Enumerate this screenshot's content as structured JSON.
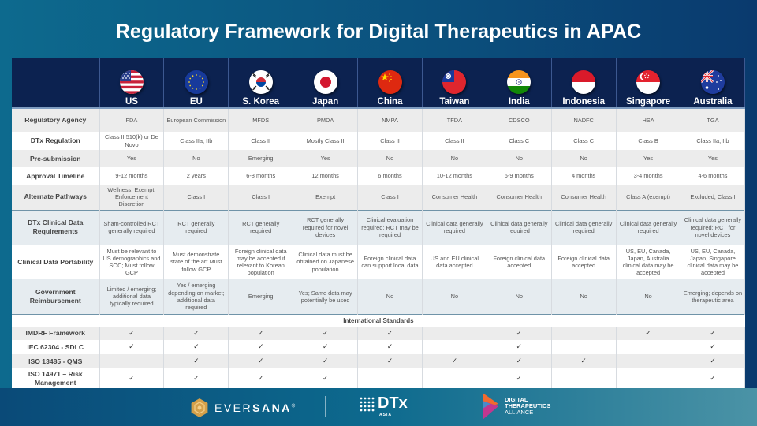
{
  "title": "Regulatory Framework for Digital Therapeutics in APAC",
  "countries": [
    {
      "name": "US",
      "flag": "us-flag"
    },
    {
      "name": "EU",
      "flag": "eu-flag"
    },
    {
      "name": "S. Korea",
      "flag": "south-korea-flag"
    },
    {
      "name": "Japan",
      "flag": "japan-flag"
    },
    {
      "name": "China",
      "flag": "china-flag"
    },
    {
      "name": "Taiwan",
      "flag": "taiwan-flag"
    },
    {
      "name": "India",
      "flag": "india-flag"
    },
    {
      "name": "Indonesia",
      "flag": "indonesia-flag"
    },
    {
      "name": "Singapore",
      "flag": "singapore-flag"
    },
    {
      "name": "Australia",
      "flag": "australia-flag"
    }
  ],
  "rows": [
    {
      "label": "Regulatory Agency",
      "values": [
        "FDA",
        "European Commission",
        "MFDS",
        "PMDA",
        "NMPA",
        "TFDA",
        "CDSCO",
        "NADFC",
        "HSA",
        "TGA"
      ]
    },
    {
      "label": "DTx Regulation",
      "values": [
        "Class II 510(k) or De Novo",
        "Class IIa, IIb",
        "Class II",
        "Mostly Class II",
        "Class II",
        "Class II",
        "Class C",
        "Class C",
        "Class B",
        "Class IIa, IIb"
      ]
    },
    {
      "label": "Pre-submission",
      "values": [
        "Yes",
        "No",
        "Emerging",
        "Yes",
        "No",
        "No",
        "No",
        "No",
        "Yes",
        "Yes"
      ]
    },
    {
      "label": "Approval Timeline",
      "values": [
        "9-12 months",
        "2 years",
        "6-8 months",
        "12 months",
        "6 months",
        "10-12 months",
        "6-9 months",
        "4 months",
        "3-4 months",
        "4-6 months"
      ]
    },
    {
      "label": "Alternate Pathways",
      "values": [
        "Wellness; Exempt; Enforcement Discretion",
        "Class I",
        "Class I",
        "Exempt",
        "Class I",
        "Consumer Health",
        "Consumer Health",
        "Consumer Health",
        "Class A (exempt)",
        "Excluded, Class I"
      ]
    },
    {
      "label": "DTx Clinical Data Requirements",
      "values": [
        "Sham-controlled RCT generally required",
        "RCT generally required",
        "RCT generally required",
        "RCT generally required for novel devices",
        "Clinical evaluation required; RCT may be required",
        "Clinical data generally required",
        "Clinical data generally required",
        "Clinical data generally required",
        "Clinical data generally required",
        "Clinical data generally required; RCT for novel devices"
      ]
    },
    {
      "label": "Clinical Data Portability",
      "values": [
        "Must be relevant to US demographics and SOC; Must follow GCP",
        "Must demonstrate state of the art Must follow GCP",
        "Foreign clinical data may be accepted if relevant to Korean population",
        "Clinical data must be obtained on Japanese population",
        "Foreign clinical data can support local data",
        "US and EU clinical data accepted",
        "Foreign clinical data accepted",
        "Foreign clinical data accepted",
        "US, EU, Canada, Japan, Australia clinical data may be accepted",
        "US, EU, Canada, Japan, Singapore clinical data may be accepted"
      ]
    },
    {
      "label": "Government Reimbursement",
      "values": [
        "Limited / emerging; additional data typically required",
        "Yes / emerging depending on market; additional data required",
        "Emerging",
        "Yes; Same data may potentially be used",
        "No",
        "No",
        "No",
        "No",
        "No",
        "Emerging; depends on therapeutic area"
      ]
    }
  ],
  "standards_section_label": "International Standards",
  "check_glyph": "✓",
  "standards": [
    {
      "label": "IMDRF Framework",
      "checks": [
        true,
        true,
        true,
        true,
        true,
        false,
        true,
        false,
        true,
        true
      ]
    },
    {
      "label": "IEC 62304 - SDLC",
      "checks": [
        true,
        true,
        true,
        true,
        true,
        false,
        true,
        false,
        false,
        true
      ]
    },
    {
      "label": "ISO 13485 - QMS",
      "checks": [
        false,
        true,
        true,
        true,
        true,
        true,
        true,
        true,
        false,
        true
      ]
    },
    {
      "label": "ISO 14971 – Risk Management",
      "checks": [
        true,
        true,
        true,
        true,
        false,
        false,
        true,
        false,
        false,
        true
      ]
    }
  ],
  "footer": {
    "eversana_light": "EVER",
    "eversana_bold": "SANA",
    "eversana_reg": "®",
    "dtx_main": "DTx",
    "dtx_sub": "ASIA",
    "dta_line1": "DIGITAL",
    "dta_line2": "THERAPEUTICS",
    "dta_line3": "ALLIANCE"
  },
  "colors": {
    "header_bg": "#0c2250",
    "row_shade": "#ececec",
    "row_blue": "#e6ecf0",
    "bg_teal": "#0d6a8e",
    "eversana_gold": "#d4a04a"
  }
}
